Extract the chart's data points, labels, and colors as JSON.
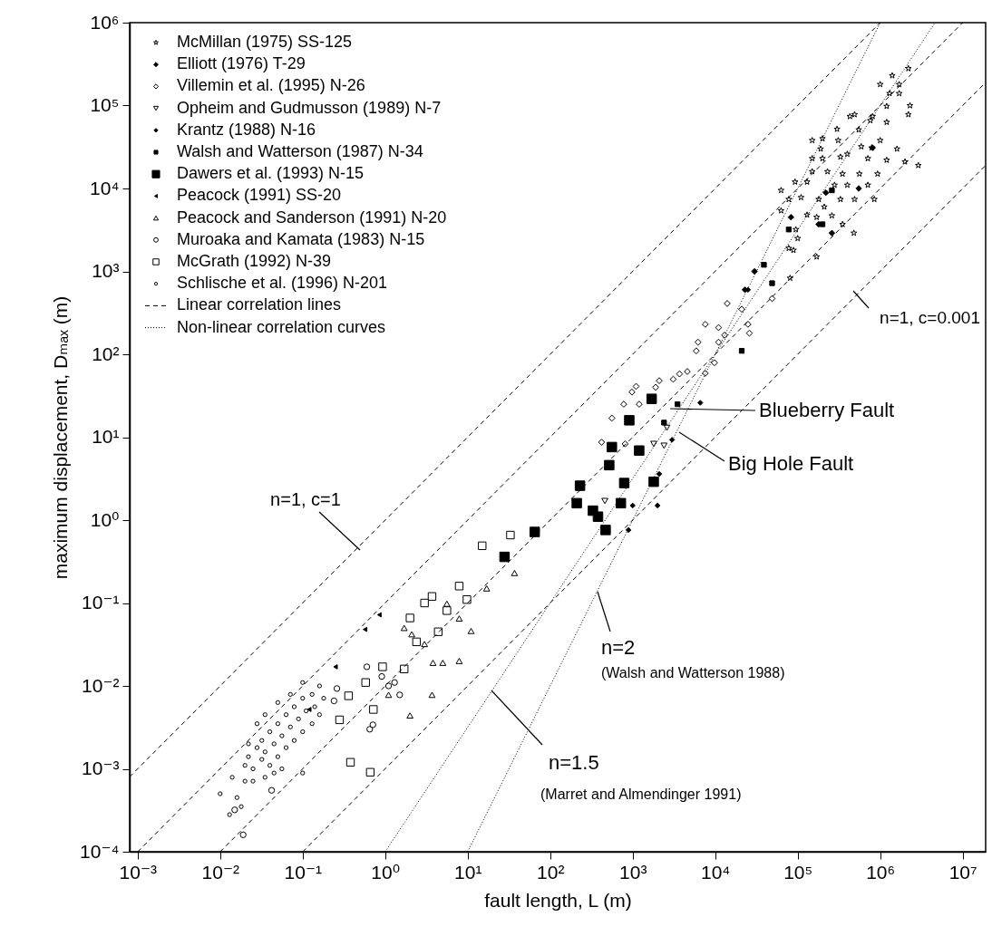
{
  "chart_data": {
    "type": "scatter",
    "log": "xy",
    "grid": false,
    "legend": "top left",
    "xlabel": "fault length, L (m)",
    "ylabel": "maximum displacement, Dₘₐₓ (m)",
    "xlim": [
      0.0008,
      19000000
    ],
    "ylim": [
      0.0001,
      1000000
    ],
    "xticks": [
      {
        "value": 0.001,
        "label": "10⁻³"
      },
      {
        "value": 0.01,
        "label": "10⁻²"
      },
      {
        "value": 0.1,
        "label": "10⁻¹"
      },
      {
        "value": 1,
        "label": "10⁰"
      },
      {
        "value": 10,
        "label": "10¹"
      },
      {
        "value": 100,
        "label": "10²"
      },
      {
        "value": 1000,
        "label": "10³"
      },
      {
        "value": 10000,
        "label": "10⁴"
      },
      {
        "value": 100000,
        "label": "10⁵"
      },
      {
        "value": 1000000,
        "label": "10⁶"
      },
      {
        "value": 10000000,
        "label": "10⁷"
      }
    ],
    "yticks": [
      {
        "value": 0.0001,
        "label": "10⁻⁴"
      },
      {
        "value": 0.001,
        "label": "10⁻³"
      },
      {
        "value": 0.01,
        "label": "10⁻²"
      },
      {
        "value": 0.1,
        "label": "10⁻¹"
      },
      {
        "value": 1,
        "label": "10⁰"
      },
      {
        "value": 10,
        "label": "10¹"
      },
      {
        "value": 100,
        "label": "10²"
      },
      {
        "value": 1000,
        "label": "10³"
      },
      {
        "value": 10000,
        "label": "10⁴"
      },
      {
        "value": 100000,
        "label": "10⁵"
      },
      {
        "value": 1000000,
        "label": "10⁶"
      }
    ],
    "series": [
      {
        "name": "McMillan (1975) SS-125",
        "color": "#000000",
        "marker": "star",
        "x": [
          2200000,
          1400000,
          1700000,
          1000000,
          1300000,
          1700000,
          2300000,
          1200000,
          2200000,
          430000,
          490000,
          810000,
          760000,
          1200000,
          550000,
          300000,
          150000,
          200000,
          310000,
          190000,
          150000,
          200000,
          330000,
          590000,
          790000,
          1000000,
          1600000,
          2000000,
          2900000,
          1200000,
          710000,
          400000,
          150000,
          230000,
          350000,
          560000,
          930000,
          93000,
          130000,
          280000,
          400000,
          710000,
          63000,
          78000,
          110000,
          180000,
          330000,
          490000,
          850000,
          130000,
          170000,
          260000,
          350000,
          480000,
          95000,
          100000,
          89000,
          170000,
          81000,
          63000,
          210000,
          78000
        ],
        "values": [
          280000,
          230000,
          180000,
          180000,
          140000,
          140000,
          100000,
          98000,
          78000,
          74000,
          78000,
          74000,
          66000,
          63000,
          51000,
          52000,
          38000,
          40000,
          38000,
          30000,
          23000,
          23000,
          24000,
          32000,
          31000,
          38000,
          30000,
          21000,
          19000,
          22000,
          23000,
          26000,
          16000,
          16000,
          15000,
          15000,
          15000,
          12000,
          12000,
          11000,
          11000,
          11000,
          9500,
          7400,
          7800,
          7400,
          7400,
          7400,
          7400,
          4800,
          4500,
          4700,
          3700,
          2900,
          3200,
          2500,
          1800,
          1500,
          830,
          5400,
          6000,
          1900
        ]
      },
      {
        "name": "Elliott (1976) T-29",
        "color": "#000000",
        "marker": "diamond",
        "x": [
          30000,
          23000,
          180000,
          260000,
          550000,
          810000,
          220000,
          83000
        ],
        "values": [
          1000,
          600,
          3700,
          2900,
          10000,
          31000,
          8900,
          4500
        ]
      },
      {
        "name": "Villemin et al. (1995) N-26",
        "color": "#000000",
        "marker": "diamond",
        "x": [
          14000,
          21000,
          26000,
          7600,
          11000,
          13000,
          6200,
          11000,
          5900,
          9800,
          7600,
          4600,
          3700,
          3100,
          2100,
          1900,
          1100,
          980,
          780,
          1200,
          560,
          420,
          810,
          49000,
          25000
        ],
        "values": [
          410,
          350,
          180,
          230,
          210,
          170,
          140,
          140,
          110,
          79,
          59,
          62,
          58,
          50,
          48,
          40,
          41,
          35,
          25,
          25,
          17,
          8.7,
          8.3,
          470,
          230
        ]
      },
      {
        "name": "Opheim and Gudmusson (1989) N-7",
        "color": "#000000",
        "marker": "triangle-down",
        "x": [
          460,
          2400,
          2600,
          1800
        ],
        "values": [
          1.7,
          7.9,
          13,
          8.3
        ]
      },
      {
        "name": "Krantz (1988) N-16",
        "color": "#000000",
        "marker": "diamond",
        "x": [
          6600,
          3000,
          1000,
          2000,
          890,
          25000,
          2100
        ],
        "values": [
          26,
          9.3,
          1.5,
          1.5,
          0.76,
          600,
          3.6
        ]
      },
      {
        "name": "Walsh and Watterson (1987) N-34",
        "color": "#000000",
        "marker": "square",
        "x": [
          39000,
          49000,
          21000,
          78000,
          200000,
          260000,
          2400,
          3500
        ],
        "values": [
          1200,
          720,
          110,
          3200,
          3700,
          9500,
          15,
          25
        ]
      },
      {
        "name": "Dawers et al. (1993) N-15",
        "color": "#000000",
        "marker": "square",
        "x": [
          28,
          65,
          210,
          230,
          330,
          470,
          720,
          1800,
          790,
          560,
          910,
          1200,
          520,
          1700,
          380
        ],
        "values": [
          0.36,
          0.72,
          1.6,
          2.6,
          1.3,
          0.76,
          1.6,
          2.9,
          2.8,
          7.6,
          16,
          6.9,
          4.6,
          29,
          1.1
        ]
      },
      {
        "name": "Peacock (1991) SS-20",
        "color": "#000000",
        "marker": "triangle-left",
        "x": [
          0.85,
          0.57,
          0.25,
          0.12
        ],
        "values": [
          0.072,
          0.048,
          0.017,
          0.0052
        ]
      },
      {
        "name": "Peacock and Sanderson (1991) N-20",
        "color": "#000000",
        "marker": "triangle",
        "x": [
          37,
          17,
          5.6,
          7.9,
          11,
          3.8,
          5.0,
          7.9,
          3.7,
          2.0,
          1.7,
          2.1,
          1.1,
          3.0
        ],
        "values": [
          0.23,
          0.15,
          0.098,
          0.065,
          0.046,
          0.019,
          0.019,
          0.02,
          0.0078,
          0.0044,
          0.05,
          0.042,
          0.0078,
          0.032
        ]
      },
      {
        "name": "Muroaka and Kamata (1983) N-15",
        "color": "#000000",
        "marker": "circle",
        "x": [
          0.6,
          0.26,
          1.5,
          0.65,
          0.042,
          0.015,
          0.019,
          1.3,
          0.91,
          0.24,
          0.71,
          1.1
        ],
        "values": [
          0.017,
          0.0093,
          0.0078,
          0.003,
          0.00055,
          0.00032,
          0.00016,
          0.011,
          0.013,
          0.0066,
          0.0034,
          0.01
        ]
      },
      {
        "name": "McGrath (1992) N-39",
        "color": "#000000",
        "marker": "square",
        "x": [
          15,
          33,
          7.9,
          9.8,
          3.7,
          3.0,
          2.0,
          4.4,
          2.4,
          0.93,
          1.7,
          0.58,
          0.36,
          0.72,
          0.28,
          0.38,
          0.66,
          5.6
        ],
        "values": [
          0.49,
          0.66,
          0.16,
          0.11,
          0.12,
          0.1,
          0.066,
          0.045,
          0.034,
          0.017,
          0.016,
          0.011,
          0.0076,
          0.0052,
          0.0039,
          0.0012,
          0.00091,
          0.081
        ]
      },
      {
        "name": "Schlische et al. (1996) N-201",
        "color": "#000000",
        "marker": "circle",
        "x": [
          0.02,
          0.022,
          0.025,
          0.028,
          0.032,
          0.032,
          0.035,
          0.04,
          0.04,
          0.045,
          0.05,
          0.05,
          0.056,
          0.063,
          0.063,
          0.071,
          0.079,
          0.079,
          0.089,
          0.1,
          0.1,
          0.11,
          0.13,
          0.13,
          0.14,
          0.16,
          0.16,
          0.18,
          0.025,
          0.02,
          0.035,
          0.045,
          0.056,
          0.028,
          0.035,
          0.05,
          0.071,
          0.1,
          0.01,
          0.1,
          0.022,
          0.016,
          0.018,
          0.013,
          0.014
        ],
        "values": [
          0.0011,
          0.0014,
          0.001,
          0.0018,
          0.0013,
          0.0022,
          0.0016,
          0.0028,
          0.0011,
          0.002,
          0.0035,
          0.0014,
          0.0025,
          0.0045,
          0.0018,
          0.0032,
          0.0056,
          0.0022,
          0.004,
          0.0071,
          0.0028,
          0.005,
          0.0079,
          0.0035,
          0.0056,
          0.01,
          0.0045,
          0.0071,
          0.00071,
          0.00071,
          0.00079,
          0.00089,
          0.001,
          0.0035,
          0.0045,
          0.0063,
          0.0079,
          0.011,
          0.0005,
          0.00089,
          0.002,
          0.00045,
          0.00035,
          0.00028,
          0.00079
        ]
      },
      {
        "name": "Linear correlation lines",
        "type": "line",
        "line_style": "dashed",
        "color": "#000000",
        "x": [
          0.0008,
          1000000
        ],
        "values": [
          0.0008,
          1000000
        ]
      },
      {
        "type": "line",
        "line_style": "dashed",
        "color": "#000000",
        "x": [
          0.001,
          10000000
        ],
        "values": [
          0.0001,
          1000000
        ]
      },
      {
        "type": "line",
        "line_style": "dashed",
        "color": "#000000",
        "x": [
          0.01,
          19000000
        ],
        "values": [
          0.0001,
          190000
        ]
      },
      {
        "type": "line",
        "line_style": "dashed",
        "color": "#000000",
        "x": [
          0.1,
          19000000
        ],
        "values": [
          0.0001,
          19000
        ]
      },
      {
        "name": "Non-linear correlation curves",
        "type": "line",
        "line_style": "dotted",
        "color": "#000000",
        "x": [
          10,
          1000000
        ],
        "values": [
          0.0001,
          1000000
        ]
      },
      {
        "type": "line",
        "line_style": "dotted",
        "color": "#000000",
        "x": [
          1,
          4600000
        ],
        "values": [
          0.0001,
          990000
        ]
      }
    ],
    "annotations": [
      {
        "text": "n=1, c=1"
      },
      {
        "text": "n=1, c=0.001"
      },
      {
        "text": "n=2"
      },
      {
        "text": "(Walsh and Watterson 1988)"
      },
      {
        "text": "n=1.5"
      },
      {
        "text": "(Marret and Almendinger 1991)"
      },
      {
        "text": "Blueberry Fault"
      },
      {
        "text": "Big Hole Fault"
      }
    ]
  }
}
